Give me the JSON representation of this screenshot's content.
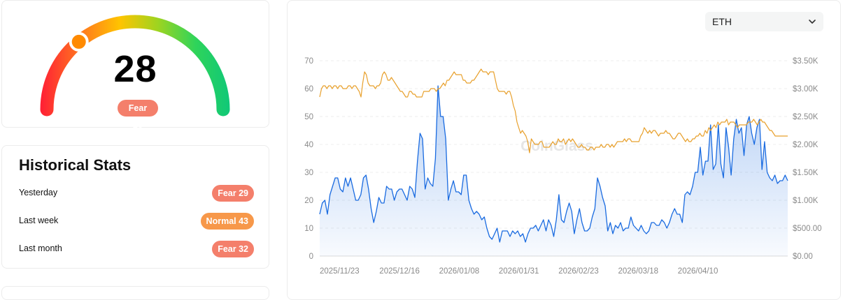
{
  "gauge": {
    "value": "28",
    "badge": "Fear 28",
    "level": 28,
    "badge_color": "#f47f6b"
  },
  "stats": {
    "title": "Historical Stats",
    "rows": [
      {
        "label": "Yesterday",
        "badge": "Fear 29",
        "color": "#f47f6b"
      },
      {
        "label": "Last week",
        "badge": "Normal 43",
        "color": "#f7984a"
      },
      {
        "label": "Last month",
        "badge": "Fear 32",
        "color": "#f47f6b"
      }
    ]
  },
  "asset_select": {
    "value": "ETH"
  },
  "chart_data": {
    "type": "line",
    "watermark": "CoinGlass",
    "x_ticks": [
      "2025/11/23",
      "2025/12/16",
      "2026/01/08",
      "2026/01/31",
      "2026/02/23",
      "2026/03/18",
      "2026/04/10"
    ],
    "y_left_ticks": [
      "0",
      "10",
      "20",
      "30",
      "40",
      "50",
      "60",
      "70"
    ],
    "y_right_ticks": [
      "$0.00",
      "$500.00",
      "$1.00K",
      "$1.50K",
      "$2.00K",
      "$2.50K",
      "$3.00K",
      "$3.50K"
    ],
    "ylim_left": [
      0,
      70
    ],
    "ylim_right": [
      0,
      3500
    ],
    "colors": {
      "index": "#1a6be0",
      "price": "#e8a02c"
    },
    "series": [
      {
        "axis": "left",
        "values": [
          15,
          19,
          20,
          15,
          22,
          25,
          28,
          28,
          24,
          23,
          28,
          25,
          28,
          24,
          20,
          20,
          22,
          28,
          29,
          24,
          17,
          12,
          16,
          21,
          19,
          19,
          25,
          24,
          24,
          20,
          23,
          24,
          24,
          22,
          20,
          25,
          24,
          21,
          34,
          44,
          42,
          24,
          28,
          26,
          25,
          35,
          61,
          50,
          50,
          42,
          20,
          24,
          27,
          23,
          23,
          22,
          29,
          29,
          20,
          17,
          15,
          16,
          15,
          13,
          14,
          10,
          7,
          6,
          8,
          10,
          5,
          9,
          9,
          9,
          7,
          9,
          8,
          9,
          7,
          8,
          5,
          8,
          10,
          10,
          11,
          9,
          11,
          13,
          9,
          13,
          11,
          7,
          13,
          22,
          13,
          12,
          16,
          19,
          16,
          8,
          13,
          17,
          12,
          9,
          9,
          10,
          14,
          17,
          28,
          25,
          21,
          18,
          9,
          12,
          8,
          11,
          10,
          12,
          9,
          10,
          10,
          14,
          11,
          10,
          9,
          11,
          9,
          8,
          9,
          12,
          12,
          11,
          11,
          13,
          12,
          10,
          12,
          15,
          17,
          15,
          15,
          12,
          22,
          23,
          22,
          25,
          30,
          30,
          39,
          29,
          34,
          34,
          47,
          31,
          33,
          47,
          33,
          28,
          46,
          39,
          29,
          42,
          49,
          44,
          46,
          36,
          47,
          50,
          44,
          40,
          46,
          49,
          31,
          41,
          30,
          28,
          27,
          29,
          26,
          27,
          27,
          29,
          27
        ],
        "values_note": "",
        "name": ""
      },
      {
        "axis": "right",
        "values": [
          2850,
          3000,
          3050,
          3050,
          3000,
          3050,
          3050,
          3000,
          3050,
          3050,
          3000,
          3050,
          3050,
          3000,
          3000,
          3000,
          3050,
          3050,
          3000,
          3050,
          3050,
          3000,
          2950,
          2850,
          3100,
          3300,
          3250,
          3100,
          3050,
          3050,
          3050,
          3000,
          3050,
          3050,
          3100,
          3250,
          3300,
          3250,
          3150,
          3150,
          3200,
          3150,
          3100,
          3050,
          3000,
          2950,
          2950,
          2900,
          2850,
          2850,
          2950,
          2950,
          2900,
          2900,
          2850,
          2850,
          2850,
          2850,
          2950,
          2950,
          2950,
          2950,
          3000,
          3000,
          3000,
          2950,
          3000,
          3000,
          3050,
          3100,
          3050,
          3150,
          3150,
          3200,
          3250,
          3300,
          3250,
          3250,
          3250,
          3250,
          3150,
          3150,
          3100,
          3100,
          3100,
          3150,
          3150,
          3200,
          3250,
          3300,
          3350,
          3300,
          3300,
          3300,
          3250,
          3300,
          3300,
          3300,
          3150,
          3000,
          2950,
          2950,
          2950,
          2950,
          2900,
          2950,
          2950,
          2850,
          2700,
          2600,
          2400,
          2300,
          2200,
          2250,
          2200,
          2150,
          2050,
          1850,
          2100,
          2050,
          2000,
          2000,
          2000,
          2050,
          2050,
          1950,
          1950,
          1950,
          1950,
          2000,
          2050,
          2000,
          2000,
          2100,
          2050,
          2050,
          2100,
          2000,
          2050,
          2100,
          2050,
          2100,
          2050,
          2000,
          1950,
          1950,
          2000,
          1950,
          1950,
          1900,
          1900,
          1950,
          1950,
          1900,
          1950,
          1950,
          1950,
          2000,
          1950,
          1950,
          2000,
          2000,
          1950,
          2000,
          1950,
          2000,
          2050,
          2050,
          2050,
          2050,
          2100,
          2050,
          2100,
          2100,
          2050,
          2050,
          2050,
          2050,
          2050,
          2150,
          2200,
          2300,
          2250,
          2200,
          2250,
          2200,
          2250,
          2250,
          2200,
          2150,
          2200,
          2200,
          2200,
          2250,
          2200,
          2200,
          2150,
          2100,
          2100,
          2150,
          2200,
          2200,
          2150,
          2100,
          2050,
          2100,
          2050,
          2050,
          2100,
          2100,
          2150,
          2150,
          2200,
          2150,
          2150,
          2250,
          2200,
          2300,
          2250,
          2300,
          2350,
          2300,
          2400,
          2350,
          2400,
          2400,
          2400,
          2450,
          2350,
          2400,
          2400,
          2400,
          2350,
          2300,
          2350,
          2350,
          2350,
          2350,
          2350,
          2400,
          2400,
          2400,
          2450,
          2400,
          2350,
          2400,
          2450,
          2400,
          2400,
          2350,
          2300,
          2250,
          2250,
          2200,
          2150,
          2150,
          2150,
          2150,
          2150,
          2150,
          2150,
          2150
        ],
        "values_note": "",
        "name": ""
      }
    ]
  }
}
